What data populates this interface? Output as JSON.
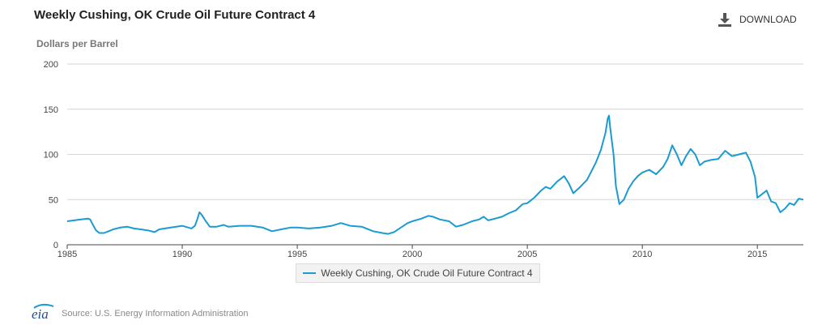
{
  "header": {
    "title": "Weekly Cushing, OK Crude Oil Future Contract 4",
    "download_label": "DOWNLOAD",
    "download_icon": "download-icon"
  },
  "legend": {
    "label": "Weekly Cushing, OK Crude Oil Future Contract 4"
  },
  "footer": {
    "logo_text": "eia",
    "source": "Source: U.S. Energy Information Administration"
  },
  "chart_data": {
    "type": "line",
    "title": "Weekly Cushing, OK Crude Oil Future Contract 4",
    "ylabel": "Dollars per Barrel",
    "xlabel": "",
    "ylim": [
      0,
      200
    ],
    "xlim": [
      1985.0,
      2017.0
    ],
    "y_ticks": [
      0,
      50,
      100,
      150,
      200
    ],
    "x_ticks": [
      1985,
      1990,
      1995,
      2000,
      2005,
      2010,
      2015
    ],
    "grid": true,
    "legend_position": "bottom",
    "color": "#1a9bd1",
    "series": [
      {
        "name": "Weekly Cushing, OK Crude Oil Future Contract 4",
        "points": [
          [
            1985.0,
            26
          ],
          [
            1985.3,
            27
          ],
          [
            1985.6,
            28
          ],
          [
            1985.9,
            29
          ],
          [
            1986.0,
            28
          ],
          [
            1986.1,
            23
          ],
          [
            1986.25,
            16
          ],
          [
            1986.4,
            13
          ],
          [
            1986.6,
            13
          ],
          [
            1986.8,
            15
          ],
          [
            1987.0,
            17
          ],
          [
            1987.3,
            19
          ],
          [
            1987.6,
            20
          ],
          [
            1987.9,
            18
          ],
          [
            1988.2,
            17
          ],
          [
            1988.5,
            16
          ],
          [
            1988.8,
            14
          ],
          [
            1989.0,
            17
          ],
          [
            1989.5,
            19
          ],
          [
            1990.0,
            21
          ],
          [
            1990.4,
            18
          ],
          [
            1990.55,
            21
          ],
          [
            1990.65,
            28
          ],
          [
            1990.75,
            36
          ],
          [
            1990.85,
            33
          ],
          [
            1991.0,
            27
          ],
          [
            1991.2,
            20
          ],
          [
            1991.5,
            20
          ],
          [
            1991.8,
            22
          ],
          [
            1992.0,
            20
          ],
          [
            1992.5,
            21
          ],
          [
            1993.0,
            21
          ],
          [
            1993.5,
            19
          ],
          [
            1993.9,
            15
          ],
          [
            1994.3,
            17
          ],
          [
            1994.7,
            19
          ],
          [
            1995.0,
            19
          ],
          [
            1995.5,
            18
          ],
          [
            1996.0,
            19
          ],
          [
            1996.5,
            21
          ],
          [
            1996.9,
            24
          ],
          [
            1997.3,
            21
          ],
          [
            1997.8,
            20
          ],
          [
            1998.3,
            15
          ],
          [
            1998.7,
            13
          ],
          [
            1998.95,
            12
          ],
          [
            1999.2,
            14
          ],
          [
            1999.5,
            19
          ],
          [
            1999.8,
            24
          ],
          [
            2000.0,
            26
          ],
          [
            2000.4,
            29
          ],
          [
            2000.7,
            32
          ],
          [
            2000.9,
            31
          ],
          [
            2001.2,
            28
          ],
          [
            2001.6,
            26
          ],
          [
            2001.9,
            20
          ],
          [
            2002.2,
            22
          ],
          [
            2002.6,
            26
          ],
          [
            2002.9,
            28
          ],
          [
            2003.1,
            31
          ],
          [
            2003.3,
            27
          ],
          [
            2003.6,
            29
          ],
          [
            2003.9,
            31
          ],
          [
            2004.2,
            35
          ],
          [
            2004.5,
            38
          ],
          [
            2004.8,
            45
          ],
          [
            2005.0,
            46
          ],
          [
            2005.3,
            52
          ],
          [
            2005.6,
            60
          ],
          [
            2005.8,
            64
          ],
          [
            2006.0,
            62
          ],
          [
            2006.3,
            70
          ],
          [
            2006.6,
            76
          ],
          [
            2006.8,
            68
          ],
          [
            2007.0,
            57
          ],
          [
            2007.3,
            64
          ],
          [
            2007.6,
            72
          ],
          [
            2007.8,
            82
          ],
          [
            2008.0,
            92
          ],
          [
            2008.2,
            105
          ],
          [
            2008.4,
            124
          ],
          [
            2008.5,
            140
          ],
          [
            2008.55,
            143
          ],
          [
            2008.6,
            130
          ],
          [
            2008.75,
            100
          ],
          [
            2008.85,
            65
          ],
          [
            2009.0,
            45
          ],
          [
            2009.2,
            50
          ],
          [
            2009.4,
            62
          ],
          [
            2009.6,
            70
          ],
          [
            2009.8,
            76
          ],
          [
            2010.0,
            80
          ],
          [
            2010.3,
            83
          ],
          [
            2010.6,
            78
          ],
          [
            2010.9,
            86
          ],
          [
            2011.1,
            95
          ],
          [
            2011.3,
            110
          ],
          [
            2011.5,
            100
          ],
          [
            2011.7,
            88
          ],
          [
            2011.9,
            98
          ],
          [
            2012.1,
            106
          ],
          [
            2012.3,
            100
          ],
          [
            2012.5,
            88
          ],
          [
            2012.7,
            92
          ],
          [
            2013.0,
            94
          ],
          [
            2013.3,
            95
          ],
          [
            2013.6,
            104
          ],
          [
            2013.9,
            98
          ],
          [
            2014.2,
            100
          ],
          [
            2014.5,
            102
          ],
          [
            2014.7,
            92
          ],
          [
            2014.9,
            75
          ],
          [
            2015.0,
            52
          ],
          [
            2015.2,
            56
          ],
          [
            2015.4,
            60
          ],
          [
            2015.6,
            48
          ],
          [
            2015.8,
            46
          ],
          [
            2016.0,
            36
          ],
          [
            2016.2,
            40
          ],
          [
            2016.4,
            46
          ],
          [
            2016.6,
            44
          ],
          [
            2016.8,
            51
          ],
          [
            2017.0,
            50
          ]
        ]
      }
    ]
  }
}
